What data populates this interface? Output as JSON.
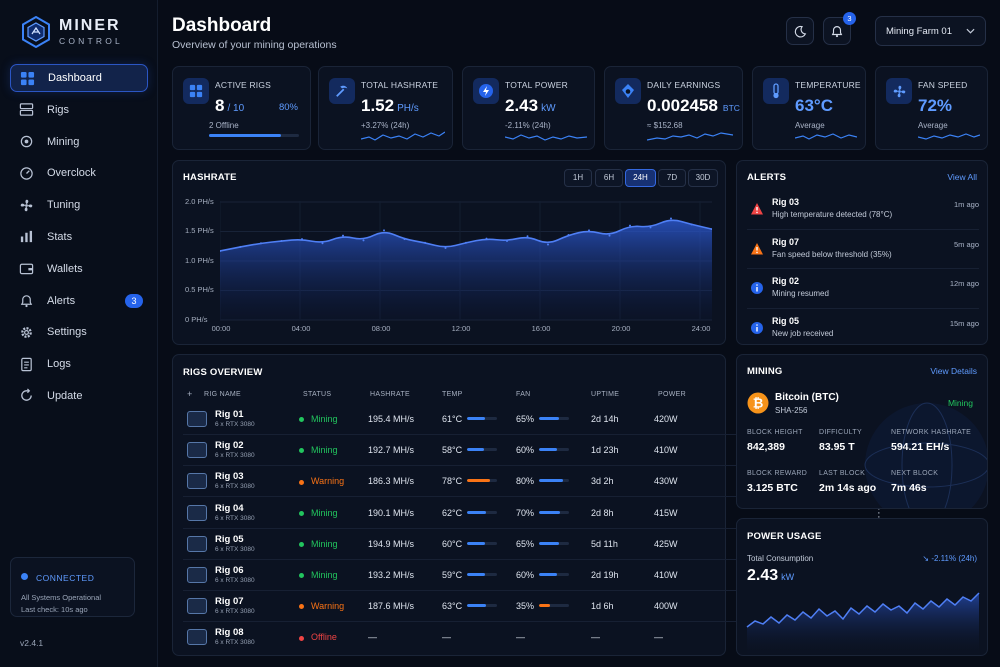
{
  "brand": {
    "name": "MINER",
    "sub": "CONTROL"
  },
  "nav": [
    {
      "label": "Dashboard",
      "icon": "grid-icon",
      "active": true
    },
    {
      "label": "Rigs",
      "icon": "server-icon"
    },
    {
      "label": "Mining",
      "icon": "chip-icon"
    },
    {
      "label": "Overclock",
      "icon": "gauge-icon"
    },
    {
      "label": "Tuning",
      "icon": "fan-icon"
    },
    {
      "label": "Stats",
      "icon": "bar-chart-icon"
    },
    {
      "label": "Wallets",
      "icon": "wallet-icon"
    },
    {
      "label": "Alerts",
      "icon": "bell-icon",
      "badge": "3"
    },
    {
      "label": "Settings",
      "icon": "gear-icon"
    },
    {
      "label": "Logs",
      "icon": "document-icon"
    },
    {
      "label": "Update",
      "icon": "refresh-icon"
    }
  ],
  "connection": {
    "status": "CONNECTED",
    "line1": "All Systems Operational",
    "line2": "Last check: 10s ago"
  },
  "version": "v2.4.1",
  "header": {
    "title": "Dashboard",
    "subtitle": "Overview of your mining operations",
    "notifications": "3",
    "farm": "Mining Farm 01"
  },
  "stats": [
    {
      "label": "ACTIVE RIGS",
      "value": "8",
      "unit": "/ 10",
      "extra": "80%",
      "sub": "2 Offline",
      "progress": 0.8,
      "icon": "grid-icon"
    },
    {
      "label": "TOTAL HASHRATE",
      "value": "1.52",
      "unit": "PH/s",
      "sub": "+3.27% (24h)",
      "icon": "pickaxe-icon"
    },
    {
      "label": "TOTAL POWER",
      "value": "2.43",
      "unit": "kW",
      "sub": "-2.11% (24h)",
      "icon": "bolt-icon"
    },
    {
      "label": "DAILY EARNINGS",
      "value": "0.002458",
      "unit": "BTC",
      "sub": "≈ $152.68",
      "icon": "coin-icon"
    },
    {
      "label": "TEMPERATURE",
      "value": "63°C",
      "unit": "",
      "sub": "Average",
      "icon": "thermometer-icon"
    },
    {
      "label": "FAN SPEED",
      "value": "72%",
      "unit": "",
      "sub": "Average",
      "icon": "fan-icon"
    }
  ],
  "hashrate": {
    "title": "HASHRATE",
    "ranges": [
      "1H",
      "6H",
      "24H",
      "7D",
      "30D"
    ],
    "selected": "24H",
    "chart_data": {
      "type": "area",
      "title": "HASHRATE",
      "xlabel": "",
      "ylabel": "",
      "x_ticks": [
        "00:00",
        "04:00",
        "08:00",
        "12:00",
        "16:00",
        "20:00",
        "24:00"
      ],
      "y_ticks": [
        "2.0 PH/s",
        "1.5 PH/s",
        "1.0 PH/s",
        "0.5 PH/s",
        "0 PH/s"
      ],
      "ylim": [
        0,
        2.0
      ],
      "x": [
        0,
        1,
        2,
        3,
        4,
        5,
        6,
        7,
        8,
        9,
        10,
        11,
        12,
        13,
        14,
        15,
        16,
        17,
        18,
        19,
        20,
        21,
        22,
        23,
        24
      ],
      "values": [
        1.17,
        1.24,
        1.3,
        1.34,
        1.37,
        1.3,
        1.43,
        1.35,
        1.52,
        1.37,
        1.31,
        1.22,
        1.31,
        1.38,
        1.34,
        1.42,
        1.28,
        1.44,
        1.52,
        1.43,
        1.6,
        1.57,
        1.72,
        1.62,
        1.54
      ]
    }
  },
  "alerts": {
    "title": "ALERTS",
    "link": "View All",
    "items": [
      {
        "rig": "Rig 03",
        "msg": "High temperature detected (78°C)",
        "time": "1m ago",
        "level": "critical",
        "icon": "alert-triangle-icon"
      },
      {
        "rig": "Rig 07",
        "msg": "Fan speed below threshold (35%)",
        "time": "5m ago",
        "level": "warning",
        "icon": "warning-triangle-icon"
      },
      {
        "rig": "Rig 02",
        "msg": "Mining resumed",
        "time": "12m ago",
        "level": "info",
        "icon": "info-icon"
      },
      {
        "rig": "Rig 05",
        "msg": "New job received",
        "time": "15m ago",
        "level": "info",
        "icon": "info-icon"
      }
    ]
  },
  "rigs": {
    "title": "RIGS OVERVIEW",
    "columns": [
      "RIG NAME",
      "STATUS",
      "HASHRATE",
      "TEMP",
      "FAN",
      "UPTIME",
      "POWER"
    ],
    "rows": [
      {
        "name": "Rig 01",
        "gpus": "6 x RTX 3080",
        "status": "Mining",
        "hashrate": "195.4 MH/s",
        "temp": "61°C",
        "temp_level": 0.61,
        "fan": "65%",
        "fan_level": 0.65,
        "uptime": "2d 14h",
        "power": "420W"
      },
      {
        "name": "Rig 02",
        "gpus": "6 x RTX 3080",
        "status": "Mining",
        "hashrate": "192.7 MH/s",
        "temp": "58°C",
        "temp_level": 0.58,
        "fan": "60%",
        "fan_level": 0.6,
        "uptime": "1d 23h",
        "power": "410W"
      },
      {
        "name": "Rig 03",
        "gpus": "6 x RTX 3080",
        "status": "Warning",
        "hashrate": "186.3 MH/s",
        "temp": "78°C",
        "temp_level": 0.78,
        "fan": "80%",
        "fan_level": 0.8,
        "uptime": "3d 2h",
        "power": "430W"
      },
      {
        "name": "Rig 04",
        "gpus": "6 x RTX 3080",
        "status": "Mining",
        "hashrate": "190.1 MH/s",
        "temp": "62°C",
        "temp_level": 0.62,
        "fan": "70%",
        "fan_level": 0.7,
        "uptime": "2d 8h",
        "power": "415W"
      },
      {
        "name": "Rig 05",
        "gpus": "6 x RTX 3080",
        "status": "Mining",
        "hashrate": "194.9 MH/s",
        "temp": "60°C",
        "temp_level": 0.6,
        "fan": "65%",
        "fan_level": 0.65,
        "uptime": "5d 11h",
        "power": "425W"
      },
      {
        "name": "Rig 06",
        "gpus": "6 x RTX 3080",
        "status": "Mining",
        "hashrate": "193.2 MH/s",
        "temp": "59°C",
        "temp_level": 0.59,
        "fan": "60%",
        "fan_level": 0.6,
        "uptime": "2d 19h",
        "power": "410W"
      },
      {
        "name": "Rig 07",
        "gpus": "6 x RTX 3080",
        "status": "Warning",
        "hashrate": "187.6 MH/s",
        "temp": "63°C",
        "temp_level": 0.63,
        "fan": "35%",
        "fan_level": 0.35,
        "uptime": "1d 6h",
        "power": "400W"
      },
      {
        "name": "Rig 08",
        "gpus": "6 x RTX 3080",
        "status": "Offline",
        "hashrate": "—",
        "temp": "—",
        "fan": "—",
        "uptime": "—",
        "power": "—"
      }
    ]
  },
  "mining": {
    "title": "MINING",
    "link": "View Details",
    "coin": "Bitcoin (BTC)",
    "algo": "SHA-256",
    "state": "Mining",
    "metrics": [
      {
        "label": "BLOCK HEIGHT",
        "value": "842,389"
      },
      {
        "label": "DIFFICULTY",
        "value": "83.95 T"
      },
      {
        "label": "NETWORK HASHRATE",
        "value": "594.21 EH/s"
      },
      {
        "label": "BLOCK REWARD",
        "value": "3.125 BTC"
      },
      {
        "label": "LAST BLOCK",
        "value": "2m 14s ago"
      },
      {
        "label": "NEXT BLOCK",
        "value": "7m 46s"
      }
    ]
  },
  "power": {
    "title": "POWER USAGE",
    "label": "Total Consumption",
    "change": "↘ -2.11% (24h)",
    "value": "2.43",
    "unit": "kW"
  },
  "colors": {
    "accent": "#3b82f6",
    "mining": "#22c55e",
    "warning": "#f97316",
    "offline": "#ef4444",
    "btc": "#f7931a"
  }
}
